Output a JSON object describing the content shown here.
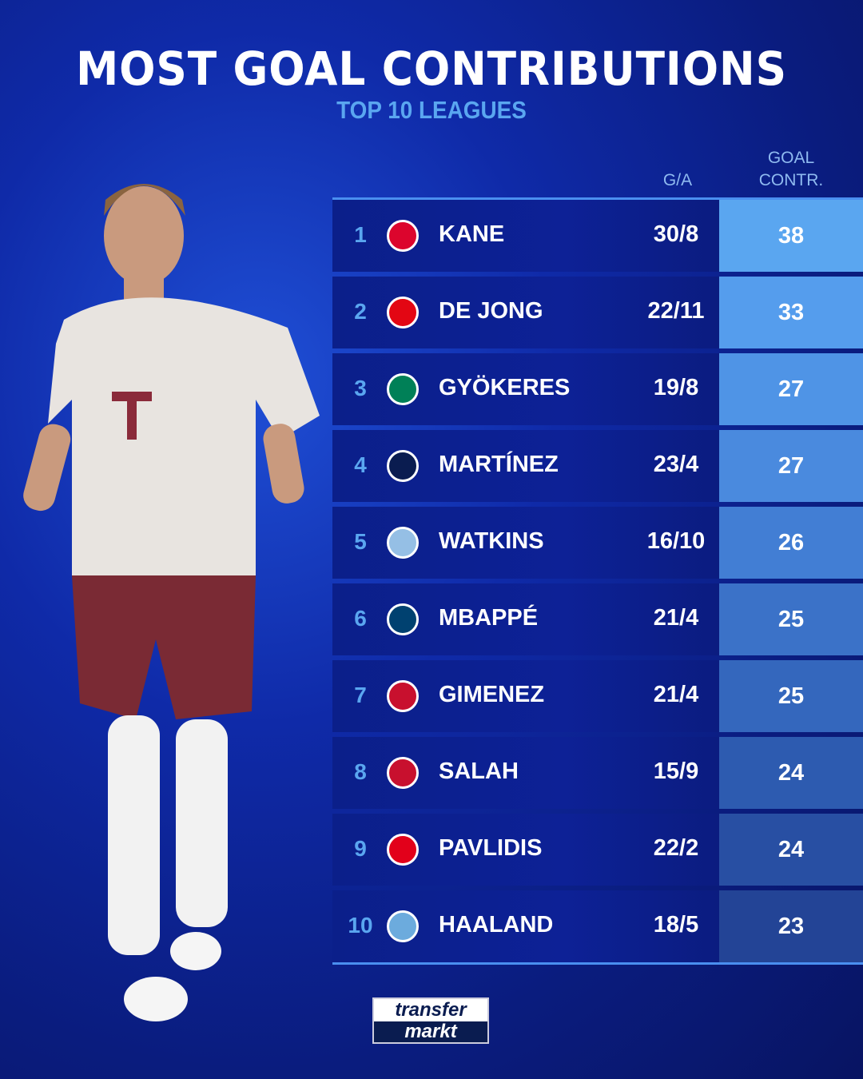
{
  "header": {
    "title": "MOST GOAL CONTRIBUTIONS",
    "subtitle": "TOP 10 LEAGUES"
  },
  "columns": {
    "ga": "G/A",
    "contr_line1": "GOAL",
    "contr_line2": "CONTR."
  },
  "rows": [
    {
      "rank": "1",
      "club_crest": "bayern-munich-crest",
      "crest_color": "#dc052d",
      "name": "KANE",
      "ga": "30/8",
      "contr": "38",
      "contr_color": "#5aa6f0"
    },
    {
      "rank": "2",
      "club_crest": "psv-crest",
      "crest_color": "#e30613",
      "name": "DE JONG",
      "ga": "22/11",
      "contr": "33",
      "contr_color": "#559ded"
    },
    {
      "rank": "3",
      "club_crest": "sporting-cp-crest",
      "crest_color": "#008057",
      "name": "GYÖKERES",
      "ga": "19/8",
      "contr": "27",
      "contr_color": "#4f94e6"
    },
    {
      "rank": "4",
      "club_crest": "inter-crest",
      "crest_color": "#0a1c50",
      "name": "MARTÍNEZ",
      "ga": "23/4",
      "contr": "27",
      "contr_color": "#4a8ade"
    },
    {
      "rank": "5",
      "club_crest": "aston-villa-crest",
      "crest_color": "#95bfe5",
      "name": "WATKINS",
      "ga": "16/10",
      "contr": "26",
      "contr_color": "#427ed4"
    },
    {
      "rank": "6",
      "club_crest": "psg-crest",
      "crest_color": "#004170",
      "name": "MBAPPÉ",
      "ga": "21/4",
      "contr": "25",
      "contr_color": "#3b72c8"
    },
    {
      "rank": "7",
      "club_crest": "feyenoord-crest",
      "crest_color": "#c8102e",
      "name": "GIMENEZ",
      "ga": "21/4",
      "contr": "25",
      "contr_color": "#3467bd"
    },
    {
      "rank": "8",
      "club_crest": "liverpool-crest",
      "crest_color": "#c8102e",
      "name": "SALAH",
      "ga": "15/9",
      "contr": "24",
      "contr_color": "#2d5bb0"
    },
    {
      "rank": "9",
      "club_crest": "az-alkmaar-crest",
      "crest_color": "#e2001a",
      "name": "PAVLIDIS",
      "ga": "22/2",
      "contr": "24",
      "contr_color": "#284fa3"
    },
    {
      "rank": "10",
      "club_crest": "manchester-city-crest",
      "crest_color": "#6cabdd",
      "name": "HAALAND",
      "ga": "18/5",
      "contr": "23",
      "contr_color": "#234496"
    }
  ],
  "brand": {
    "line1": "transfer",
    "line2": "markt"
  }
}
